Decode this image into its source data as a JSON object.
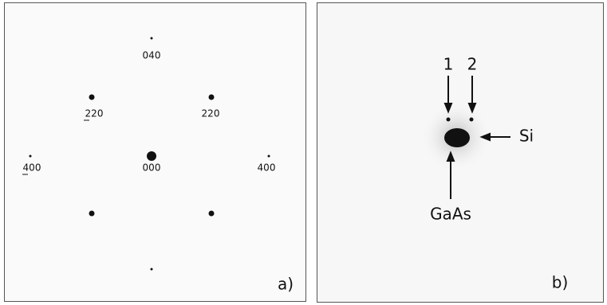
{
  "panel_a": {
    "labels": {
      "spot_040": "040",
      "spot_m220": "220",
      "spot_220": "220",
      "spot_m400": "400",
      "spot_000": "000",
      "spot_400": "400"
    },
    "tag": "a)"
  },
  "panel_b": {
    "labels": {
      "arrow_1": "1",
      "arrow_2": "2",
      "si": "Si",
      "gaas": "GaAs"
    },
    "tag": "b)"
  }
}
